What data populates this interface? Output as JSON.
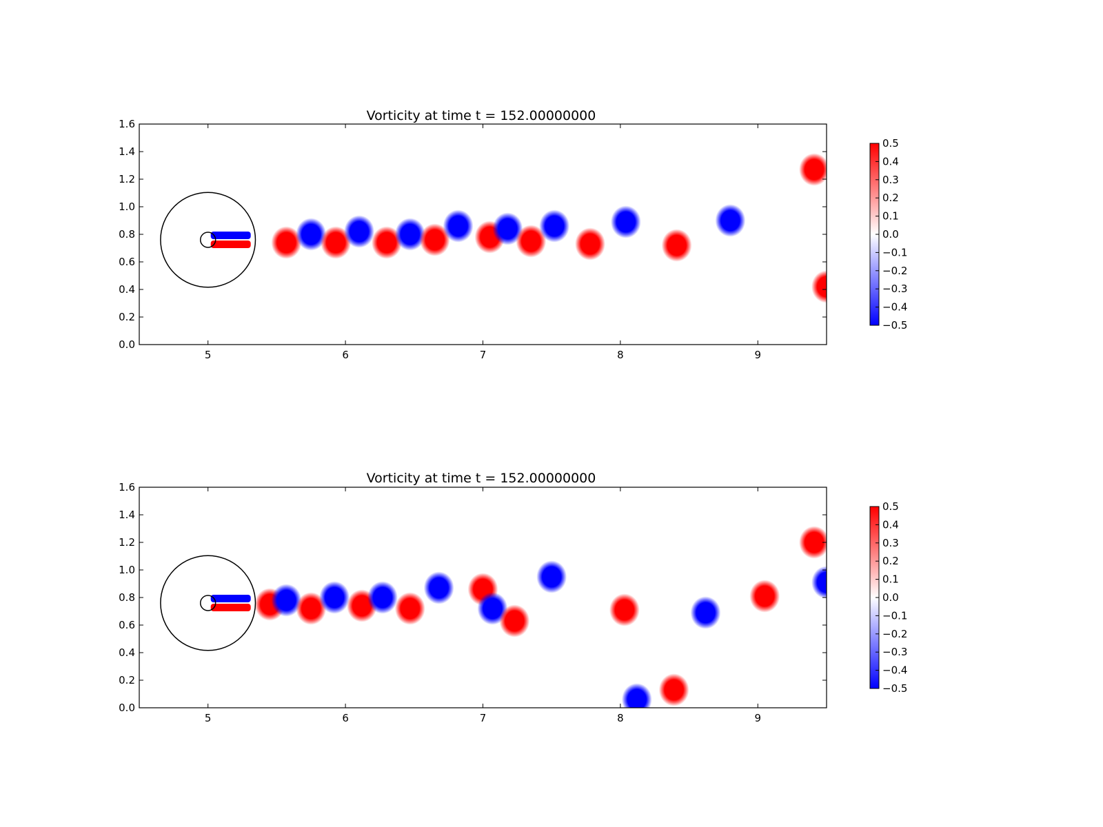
{
  "chart_data": [
    {
      "type": "heatmap",
      "title": "Vorticity at time t =   152.00000000",
      "xlabel": "",
      "ylabel": "",
      "xlim": [
        4.5,
        9.5
      ],
      "ylim": [
        0.0,
        1.6
      ],
      "x_ticks": [
        5,
        6,
        7,
        8,
        9
      ],
      "y_ticks": [
        "0.0",
        "0.2",
        "0.4",
        "0.6",
        "0.8",
        "1.0",
        "1.2",
        "1.4",
        "1.6"
      ],
      "grid": false,
      "colormap": {
        "name": "bwr",
        "low_color": "#0000ff",
        "mid_color": "#ffffff",
        "high_color": "#ff0000"
      },
      "colorbar": {
        "range": [
          -0.5,
          0.5
        ],
        "ticks": [
          "0.5",
          "0.4",
          "0.3",
          "0.2",
          "0.1",
          "0.0",
          "−0.1",
          "−0.2",
          "−0.3",
          "−0.4",
          "−0.5"
        ],
        "placement": "right"
      },
      "overlay_circles": [
        {
          "center": [
            5.0,
            0.76
          ],
          "radius": 0.345
        },
        {
          "center": [
            5.0,
            0.76
          ],
          "radius": 0.055
        }
      ],
      "vortices": [
        {
          "x": 5.57,
          "y": 0.74,
          "value": 0.5
        },
        {
          "x": 5.75,
          "y": 0.8,
          "value": -0.5
        },
        {
          "x": 5.93,
          "y": 0.74,
          "value": 0.5
        },
        {
          "x": 6.1,
          "y": 0.82,
          "value": -0.5
        },
        {
          "x": 6.3,
          "y": 0.74,
          "value": 0.5
        },
        {
          "x": 6.47,
          "y": 0.8,
          "value": -0.5
        },
        {
          "x": 6.65,
          "y": 0.76,
          "value": 0.5
        },
        {
          "x": 6.82,
          "y": 0.86,
          "value": -0.5
        },
        {
          "x": 7.05,
          "y": 0.78,
          "value": 0.5
        },
        {
          "x": 7.18,
          "y": 0.84,
          "value": -0.5
        },
        {
          "x": 7.35,
          "y": 0.75,
          "value": 0.5
        },
        {
          "x": 7.52,
          "y": 0.86,
          "value": -0.5
        },
        {
          "x": 7.78,
          "y": 0.73,
          "value": 0.5
        },
        {
          "x": 8.04,
          "y": 0.89,
          "value": -0.5
        },
        {
          "x": 8.41,
          "y": 0.72,
          "value": 0.5
        },
        {
          "x": 8.8,
          "y": 0.9,
          "value": -0.5
        },
        {
          "x": 9.41,
          "y": 1.27,
          "value": 0.5
        },
        {
          "x": 9.5,
          "y": 0.42,
          "value": 0.5
        }
      ]
    },
    {
      "type": "heatmap",
      "title": "Vorticity at time t =   152.00000000",
      "xlabel": "",
      "ylabel": "",
      "xlim": [
        4.5,
        9.5
      ],
      "ylim": [
        0.0,
        1.6
      ],
      "x_ticks": [
        5,
        6,
        7,
        8,
        9
      ],
      "y_ticks": [
        "0.0",
        "0.2",
        "0.4",
        "0.6",
        "0.8",
        "1.0",
        "1.2",
        "1.4",
        "1.6"
      ],
      "grid": false,
      "colormap": {
        "name": "bwr",
        "low_color": "#0000ff",
        "mid_color": "#ffffff",
        "high_color": "#ff0000"
      },
      "colorbar": {
        "range": [
          -0.5,
          0.5
        ],
        "ticks": [
          "0.5",
          "0.4",
          "0.3",
          "0.2",
          "0.1",
          "0.0",
          "−0.1",
          "−0.2",
          "−0.3",
          "−0.4",
          "−0.5"
        ],
        "placement": "right"
      },
      "overlay_circles": [
        {
          "center": [
            5.0,
            0.76
          ],
          "radius": 0.345
        },
        {
          "center": [
            5.0,
            0.76
          ],
          "radius": 0.055
        }
      ],
      "vortices": [
        {
          "x": 5.45,
          "y": 0.75,
          "value": 0.5
        },
        {
          "x": 5.57,
          "y": 0.78,
          "value": -0.5
        },
        {
          "x": 5.75,
          "y": 0.72,
          "value": 0.5
        },
        {
          "x": 5.92,
          "y": 0.8,
          "value": -0.5
        },
        {
          "x": 6.12,
          "y": 0.74,
          "value": 0.5
        },
        {
          "x": 6.27,
          "y": 0.8,
          "value": -0.5
        },
        {
          "x": 6.47,
          "y": 0.72,
          "value": 0.5
        },
        {
          "x": 6.68,
          "y": 0.87,
          "value": -0.5
        },
        {
          "x": 7.0,
          "y": 0.86,
          "value": 0.5
        },
        {
          "x": 7.07,
          "y": 0.72,
          "value": -0.5
        },
        {
          "x": 7.23,
          "y": 0.63,
          "value": 0.5
        },
        {
          "x": 7.5,
          "y": 0.95,
          "value": -0.5
        },
        {
          "x": 8.03,
          "y": 0.71,
          "value": 0.5
        },
        {
          "x": 8.62,
          "y": 0.69,
          "value": -0.5
        },
        {
          "x": 9.05,
          "y": 0.81,
          "value": 0.5
        },
        {
          "x": 9.41,
          "y": 1.2,
          "value": 0.5
        },
        {
          "x": 9.5,
          "y": 0.91,
          "value": -0.5
        },
        {
          "x": 8.12,
          "y": 0.06,
          "value": -0.5
        },
        {
          "x": 8.39,
          "y": 0.13,
          "value": 0.5
        }
      ]
    }
  ]
}
